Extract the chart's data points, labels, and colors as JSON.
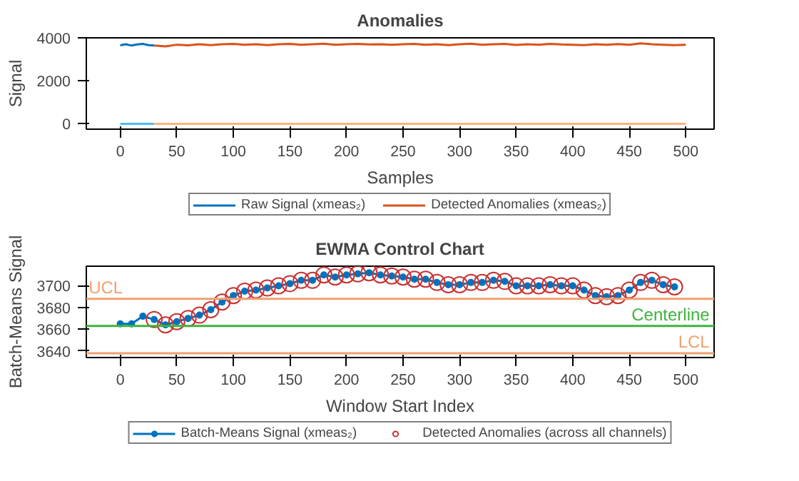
{
  "chart_data": [
    {
      "type": "line",
      "title": "Anomalies",
      "xlabel": "Samples",
      "ylabel": "Signal",
      "xlim": [
        -30,
        525
      ],
      "xticks": [
        0,
        50,
        100,
        150,
        200,
        250,
        300,
        350,
        400,
        450,
        500
      ],
      "ylim": [
        -250,
        4000
      ],
      "yticks": [
        0,
        2000,
        4000
      ],
      "grid": false,
      "legend": "bottom",
      "series": [
        {
          "name": "Raw Signal (xmeas₂)",
          "color": "#0072bd",
          "x": [
            0,
            5,
            10,
            15,
            20,
            25,
            30
          ],
          "values": [
            3650,
            3700,
            3640,
            3690,
            3720,
            3660,
            3640
          ]
        },
        {
          "name": "Detected Anomalies (xmeas₂)",
          "color": "#d95319",
          "x": [
            30,
            40,
            50,
            60,
            70,
            80,
            90,
            100,
            110,
            120,
            130,
            140,
            150,
            160,
            170,
            180,
            190,
            200,
            210,
            220,
            230,
            240,
            250,
            260,
            270,
            280,
            290,
            300,
            310,
            320,
            330,
            340,
            350,
            360,
            370,
            380,
            390,
            400,
            410,
            420,
            430,
            440,
            450,
            460,
            470,
            480,
            490,
            500
          ],
          "values": [
            3640,
            3600,
            3680,
            3650,
            3700,
            3660,
            3700,
            3720,
            3680,
            3700,
            3660,
            3700,
            3720,
            3680,
            3700,
            3730,
            3680,
            3700,
            3720,
            3690,
            3700,
            3680,
            3700,
            3720,
            3680,
            3700,
            3660,
            3700,
            3730,
            3680,
            3700,
            3720,
            3670,
            3700,
            3680,
            3720,
            3690,
            3680,
            3660,
            3700,
            3680,
            3710,
            3680,
            3740,
            3700,
            3680,
            3660,
            3680
          ]
        },
        {
          "color": "#4dbeee",
          "x": [
            0,
            30
          ],
          "values": [
            0,
            0
          ]
        },
        {
          "color": "#ffb27f",
          "x": [
            30,
            500
          ],
          "values": [
            0,
            0
          ]
        }
      ]
    },
    {
      "type": "line",
      "title": "EWMA Control Chart",
      "xlabel": "Window Start Index",
      "ylabel": "Batch-Means Signal",
      "xlim": [
        -30,
        525
      ],
      "xticks": [
        0,
        50,
        100,
        150,
        200,
        250,
        300,
        350,
        400,
        450,
        500
      ],
      "ylim": [
        3634,
        3718
      ],
      "yticks": [
        3640,
        3660,
        3680,
        3700
      ],
      "grid": false,
      "legend": "bottom",
      "series": [
        {
          "name": "Batch-Means Signal (xmeas₂)",
          "color": "#0072bd",
          "marker": "circle",
          "x": [
            0,
            10,
            20,
            30,
            40,
            50,
            60,
            70,
            80,
            90,
            100,
            110,
            120,
            130,
            140,
            150,
            160,
            170,
            180,
            190,
            200,
            210,
            220,
            230,
            240,
            250,
            260,
            270,
            280,
            290,
            300,
            310,
            320,
            330,
            340,
            350,
            360,
            370,
            380,
            390,
            400,
            410,
            420,
            430,
            440,
            450,
            460,
            470,
            480,
            490
          ],
          "values": [
            3665,
            3665,
            3672,
            3669,
            3664,
            3667,
            3670,
            3673,
            3678,
            3685,
            3691,
            3695,
            3696,
            3698,
            3700,
            3702,
            3705,
            3705,
            3710,
            3708,
            3710,
            3711,
            3712,
            3710,
            3709,
            3708,
            3706,
            3706,
            3703,
            3701,
            3701,
            3703,
            3703,
            3705,
            3704,
            3700,
            3700,
            3700,
            3701,
            3700,
            3700,
            3696,
            3691,
            3690,
            3691,
            3696,
            3703,
            3705,
            3701,
            3699
          ]
        },
        {
          "name": "Detected Anomalies (across all channels)",
          "type": "scatter",
          "color": "#c83232",
          "marker": "circle",
          "x": [
            30,
            40,
            50,
            60,
            70,
            80,
            90,
            100,
            110,
            120,
            130,
            140,
            150,
            160,
            170,
            180,
            190,
            200,
            210,
            220,
            230,
            240,
            250,
            260,
            270,
            280,
            290,
            300,
            310,
            320,
            330,
            340,
            350,
            360,
            370,
            380,
            390,
            400,
            410,
            420,
            430,
            440,
            450,
            460,
            470,
            480,
            490
          ],
          "values": [
            3669,
            3664,
            3667,
            3670,
            3673,
            3678,
            3685,
            3691,
            3695,
            3696,
            3698,
            3700,
            3702,
            3705,
            3705,
            3710,
            3708,
            3710,
            3711,
            3712,
            3710,
            3709,
            3708,
            3706,
            3706,
            3703,
            3701,
            3701,
            3703,
            3703,
            3705,
            3704,
            3700,
            3700,
            3700,
            3701,
            3700,
            3700,
            3696,
            3691,
            3690,
            3691,
            3696,
            3703,
            3705,
            3701,
            3699
          ]
        }
      ],
      "ref_lines": [
        {
          "axis": "y",
          "value": 3688,
          "label": "UCL",
          "color": "#f0a070"
        },
        {
          "axis": "y",
          "value": 3663,
          "label": "Centerline",
          "color": "#3cb43c"
        },
        {
          "axis": "y",
          "value": 3638,
          "label": "LCL",
          "color": "#f0a070"
        }
      ]
    }
  ]
}
